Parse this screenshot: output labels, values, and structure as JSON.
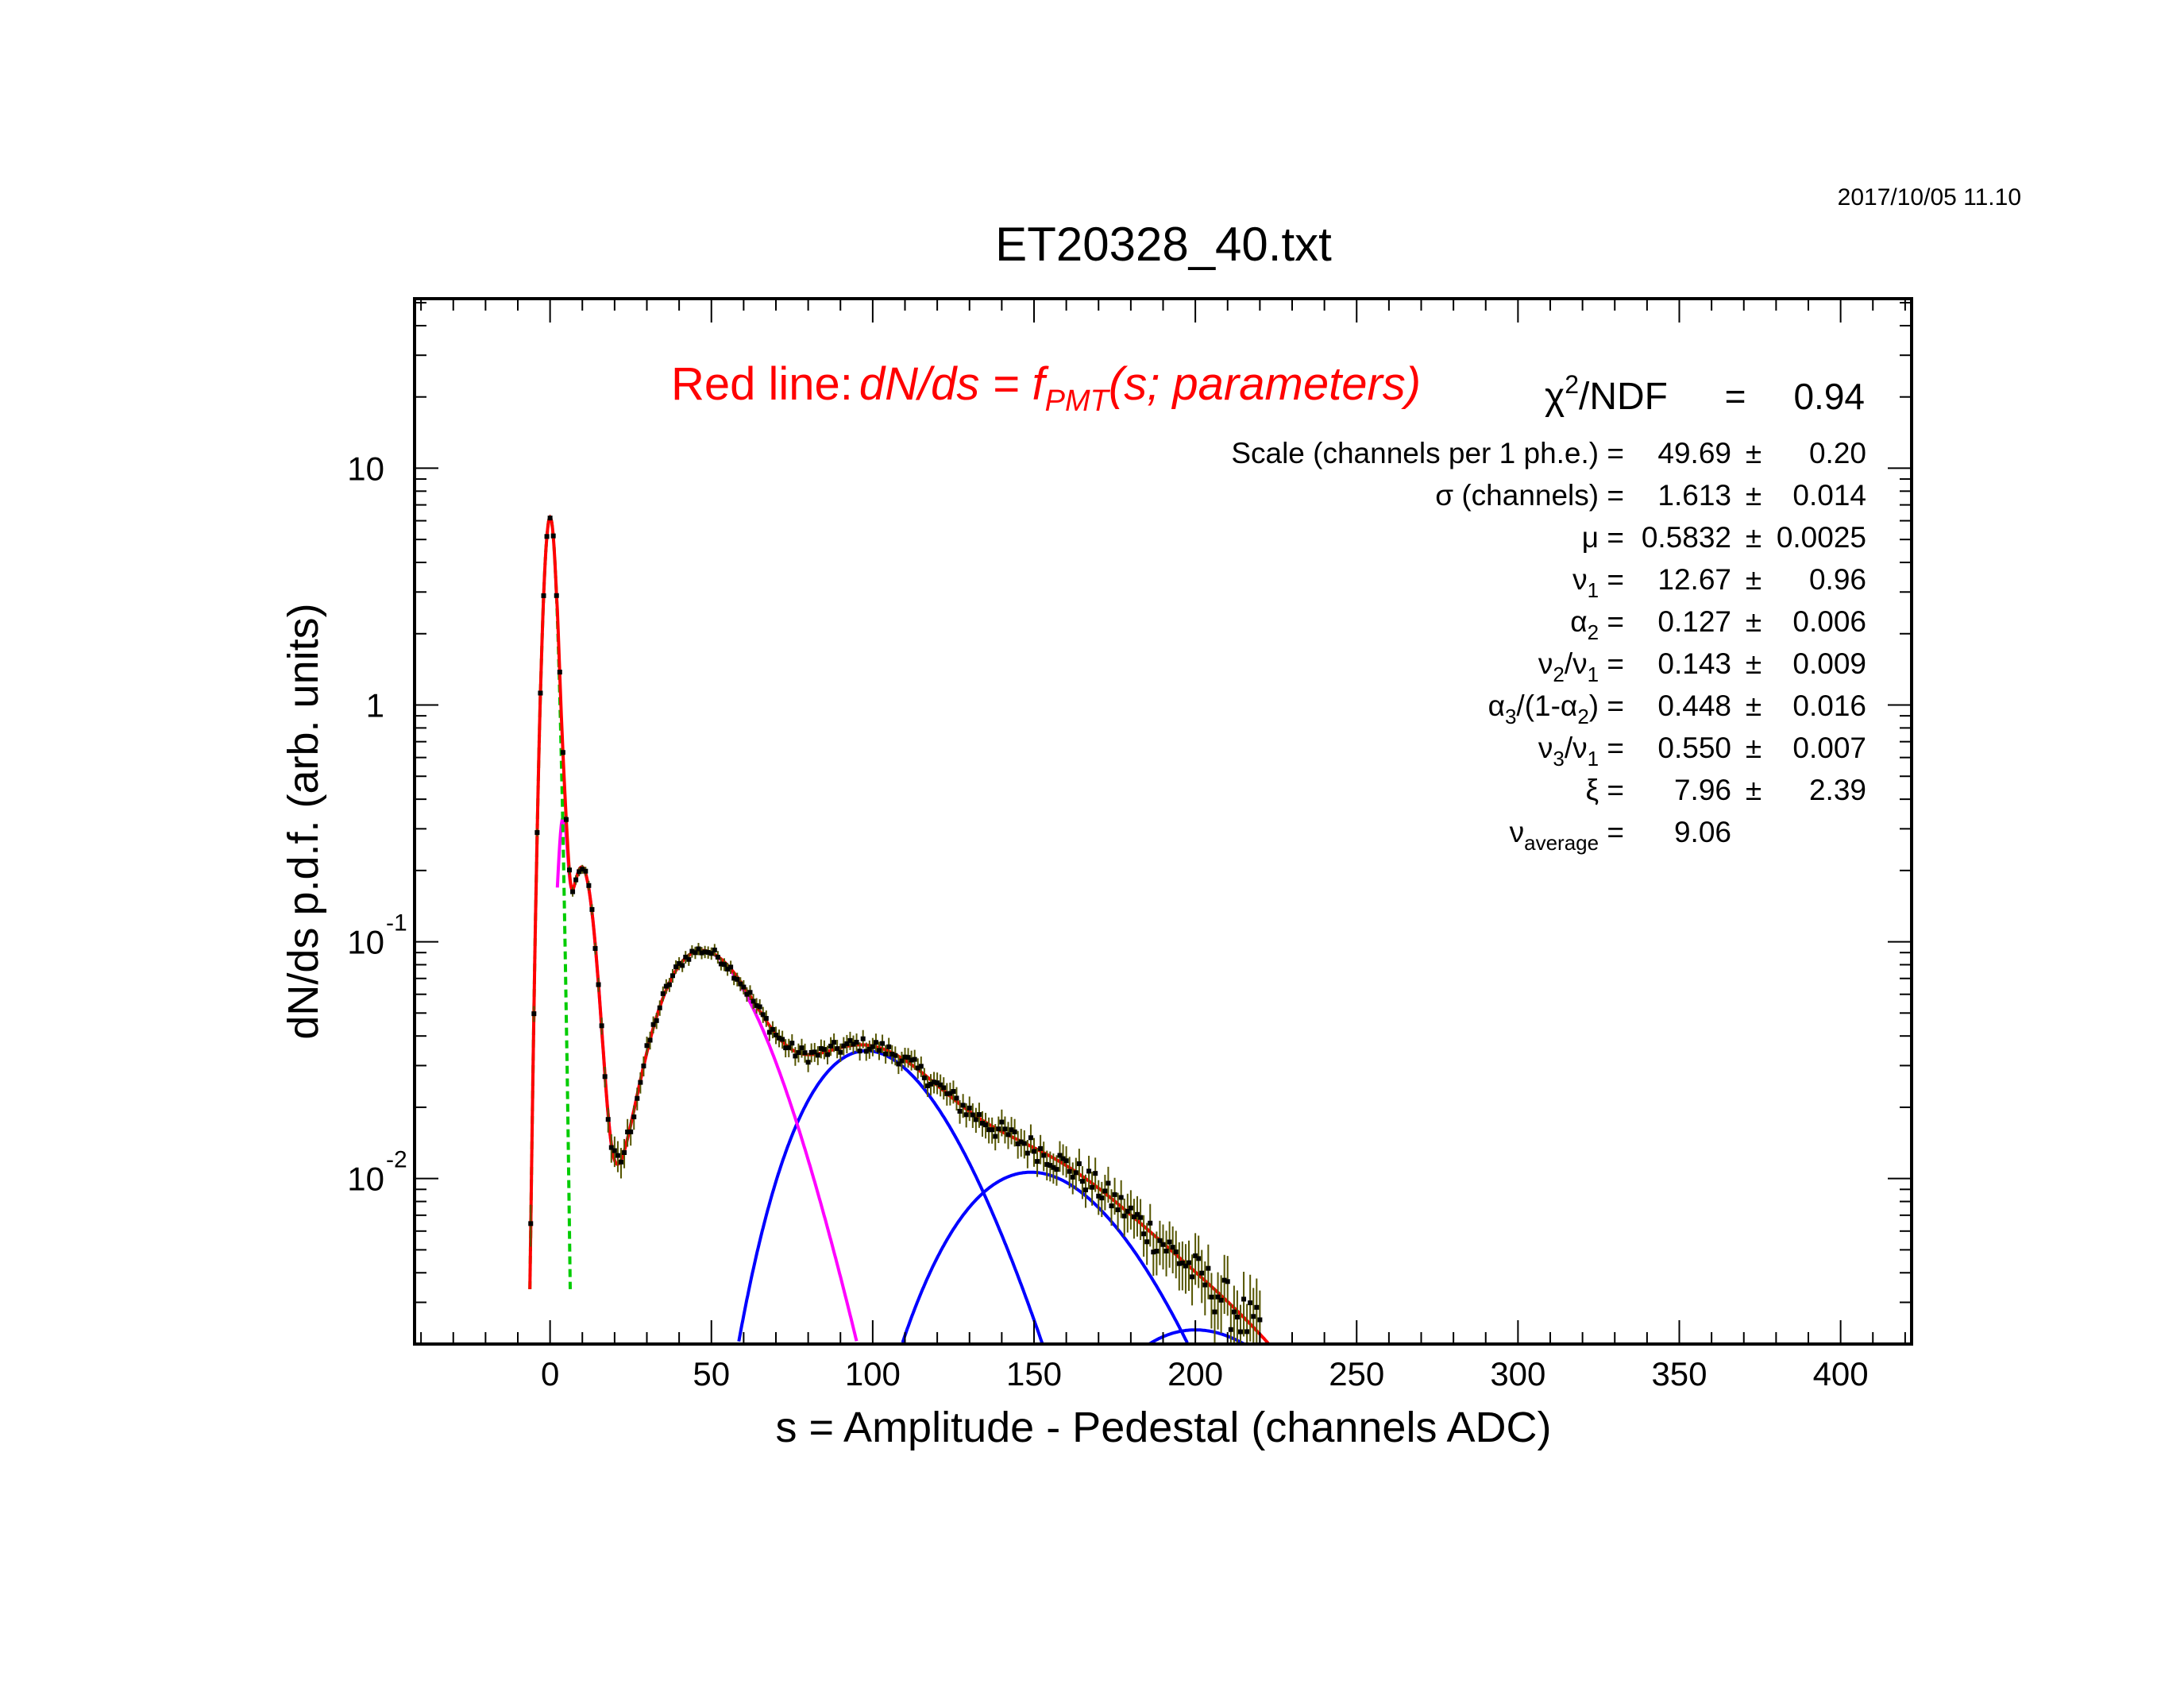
{
  "timestamp": "2017/10/05   11.10",
  "chart_data": {
    "type": "line",
    "title": "ET20328_40.txt",
    "xlabel": "s = Amplitude - Pedestal (channels ADC)",
    "ylabel": "dN/ds p.d.f. (arb. units)",
    "xlim": [
      -42,
      422
    ],
    "ylim": [
      0.002,
      52
    ],
    "yscale": "log",
    "grid": false,
    "x_ticks": [
      0,
      50,
      100,
      150,
      200,
      250,
      300,
      350,
      400
    ],
    "y_ticks": [
      {
        "value": 0.01,
        "base": "10",
        "exp": "-2"
      },
      {
        "value": 0.1,
        "base": "10",
        "exp": "-1"
      },
      {
        "value": 1,
        "base": "1",
        "exp": ""
      },
      {
        "value": 10,
        "base": "10",
        "exp": ""
      }
    ],
    "model_label": {
      "prefix": "Red line:",
      "formula_main": "dN/ds = f",
      "formula_sub": "PMT",
      "formula_tail": "(s; parameters)"
    },
    "fit_parameters": [
      {
        "label": "χ",
        "sup": "2",
        "rest": "/NDF",
        "eq": "=",
        "value": "0.94",
        "err": ""
      },
      {
        "label": "Scale (channels per 1 ph.e.) =",
        "value": "49.69",
        "pm": "±",
        "err": "0.20"
      },
      {
        "label": "σ (channels) =",
        "value": "1.613",
        "pm": "±",
        "err": "0.014"
      },
      {
        "label": "μ  =",
        "value": "0.5832",
        "pm": "±",
        "err": "0.0025"
      },
      {
        "label": "ν",
        "sub": "1",
        "rest": " =",
        "value": "12.67",
        "pm": "±",
        "err": "0.96"
      },
      {
        "label": "α",
        "sub": "2",
        "rest": " =",
        "value": "0.127",
        "pm": "±",
        "err": "0.006"
      },
      {
        "label": "ν",
        "sub": "2",
        "mid": "/ν",
        "sub2": "1",
        "rest": " =",
        "value": "0.143",
        "pm": "±",
        "err": "0.009"
      },
      {
        "label": "α",
        "sub": "3",
        "mid": "/(1-α",
        "sub2": "2",
        "rest": ") =",
        "value": "0.448",
        "pm": "±",
        "err": "0.016"
      },
      {
        "label": "ν",
        "sub": "3",
        "mid": "/ν",
        "sub2": "1",
        "rest": " =",
        "value": "0.550",
        "pm": "±",
        "err": "0.007"
      },
      {
        "label": "ξ  =",
        "value": "7.96",
        "pm": "±",
        "err": "2.39"
      },
      {
        "label": "ν",
        "sub": "average",
        "rest": "  =",
        "value": "9.06",
        "err": ""
      }
    ],
    "params": {
      "scale": 49.69,
      "sigma": 1.613,
      "mu": 0.5832,
      "nu1": 12.67,
      "alpha2": 0.127,
      "nu2_over_nu1": 0.143,
      "alpha3_rel": 0.448,
      "nu3_over_nu1": 0.55,
      "xi": 7.96
    },
    "series": [
      {
        "role": "total fit",
        "color": "#ff0000"
      },
      {
        "role": "single photo-electron component",
        "color": "#ff00ff"
      },
      {
        "role": "multi photo-electron components",
        "color": "#0000ff"
      },
      {
        "role": "pedestal",
        "color": "#00cc00"
      },
      {
        "role": "data",
        "color": "#000000",
        "error_color": "#555500",
        "tail_error_color": "#ffff00"
      }
    ],
    "colors": {
      "red": "#ff0000",
      "magenta": "#ff00ff",
      "blue": "#0000ff",
      "green": "#00cc00",
      "data": "#000000",
      "yellow": "#ffff00"
    }
  }
}
